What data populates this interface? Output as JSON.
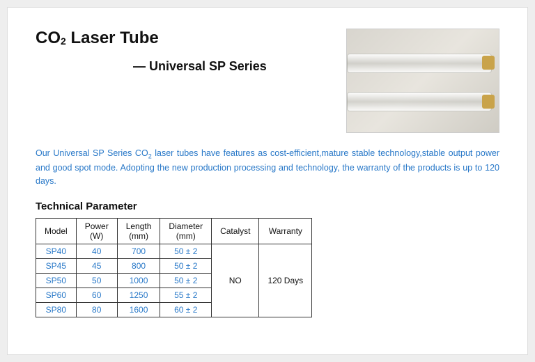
{
  "title_pre": "CO",
  "title_sub": "2",
  "title_post": " Laser Tube",
  "subtitle": "— Universal SP Series",
  "description_pre": "Our Universal SP Series CO",
  "description_sub": "2",
  "description_post": " laser tubes have features as cost-efficient,mature stable technology,stable output power and good spot mode. Adopting the new production processing and technology, the warranty of the products is up to 120 days.",
  "section_title": "Technical Parameter",
  "columns": {
    "c0": "Model",
    "c1a": "Power",
    "c1b": "(W)",
    "c2a": "Length",
    "c2b": "(mm)",
    "c3a": "Diameter",
    "c3b": "(mm)",
    "c4": "Catalyst",
    "c5": "Warranty"
  },
  "rows": [
    {
      "model": "SP40",
      "power": "40",
      "length": "700",
      "diameter": "50 ± 2"
    },
    {
      "model": "SP45",
      "power": "45",
      "length": "800",
      "diameter": "50 ± 2"
    },
    {
      "model": "SP50",
      "power": "50",
      "length": "1000",
      "diameter": "50 ± 2"
    },
    {
      "model": "SP60",
      "power": "60",
      "length": "1250",
      "diameter": "55 ± 2"
    },
    {
      "model": "SP80",
      "power": "80",
      "length": "1600",
      "diameter": "60 ± 2"
    }
  ],
  "catalyst": "NO",
  "warranty": "120 Days",
  "colors": {
    "link_blue": "#2878c8",
    "text_black": "#111111",
    "page_bg": "#ffffff",
    "body_bg": "#eeeeee",
    "border": "#333333"
  }
}
